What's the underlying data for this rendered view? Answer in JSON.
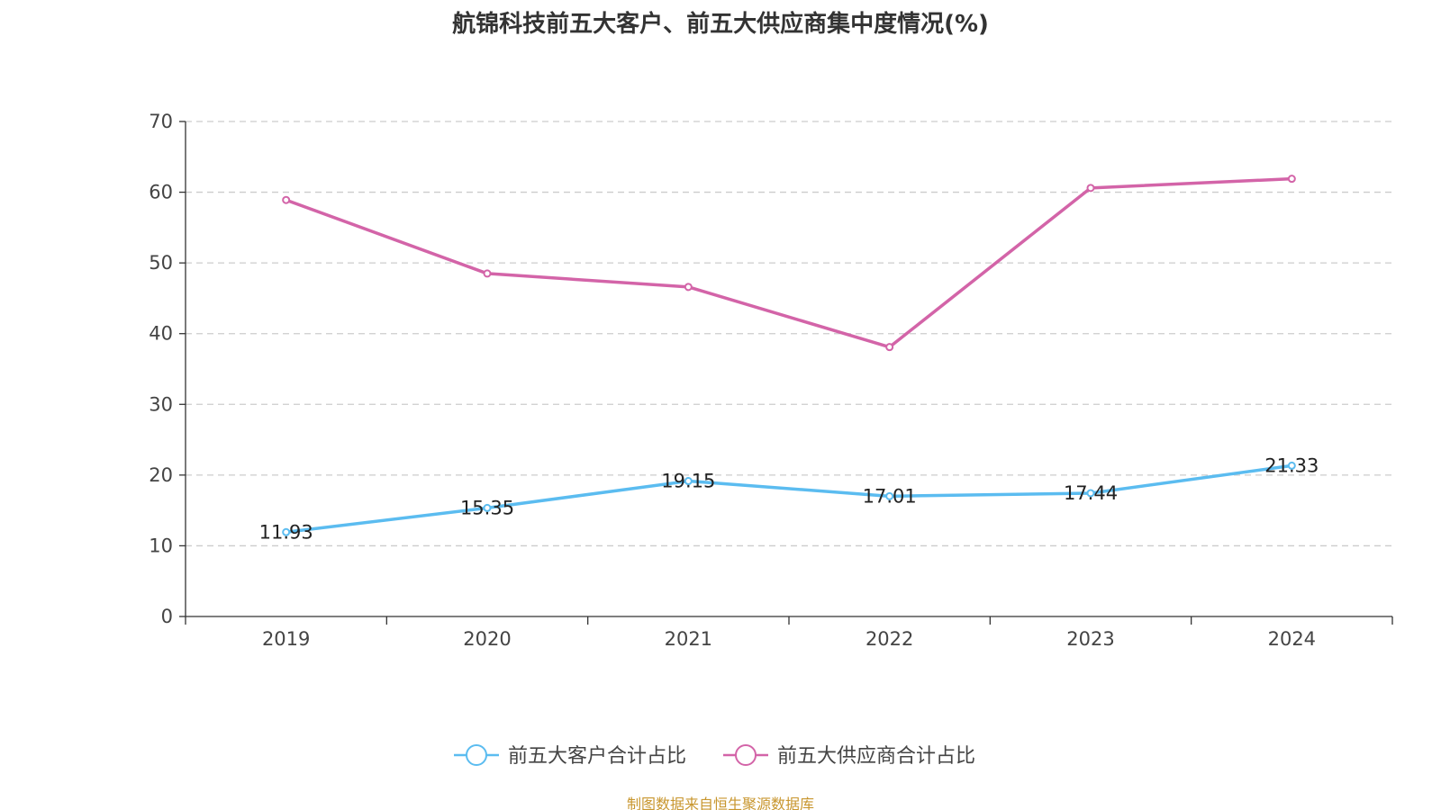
{
  "chart_data": {
    "type": "line",
    "title": "航锦科技前五大客户、前五大供应商集中度情况(%)",
    "categories": [
      "2019",
      "2020",
      "2021",
      "2022",
      "2023",
      "2024"
    ],
    "ylim": [
      0,
      70
    ],
    "yticks": [
      0,
      10,
      20,
      30,
      40,
      50,
      60,
      70
    ],
    "grid": "horizontal-dashed",
    "legend_position": "bottom-center",
    "series": [
      {
        "name": "前五大客户合计占比",
        "values": [
          11.93,
          15.35,
          19.15,
          17.01,
          17.44,
          21.33
        ],
        "labels": [
          "11.93",
          "15.35",
          "19.15",
          "17.01",
          "17.44",
          "21.33"
        ],
        "color": "#5bbcf0",
        "show_labels": true
      },
      {
        "name": "前五大供应商合计占比",
        "values": [
          58.9,
          48.5,
          46.6,
          38.1,
          60.6,
          61.9
        ],
        "color": "#d364a8",
        "show_labels": false
      }
    ]
  },
  "source_note": "制图数据来自恒生聚源数据库"
}
